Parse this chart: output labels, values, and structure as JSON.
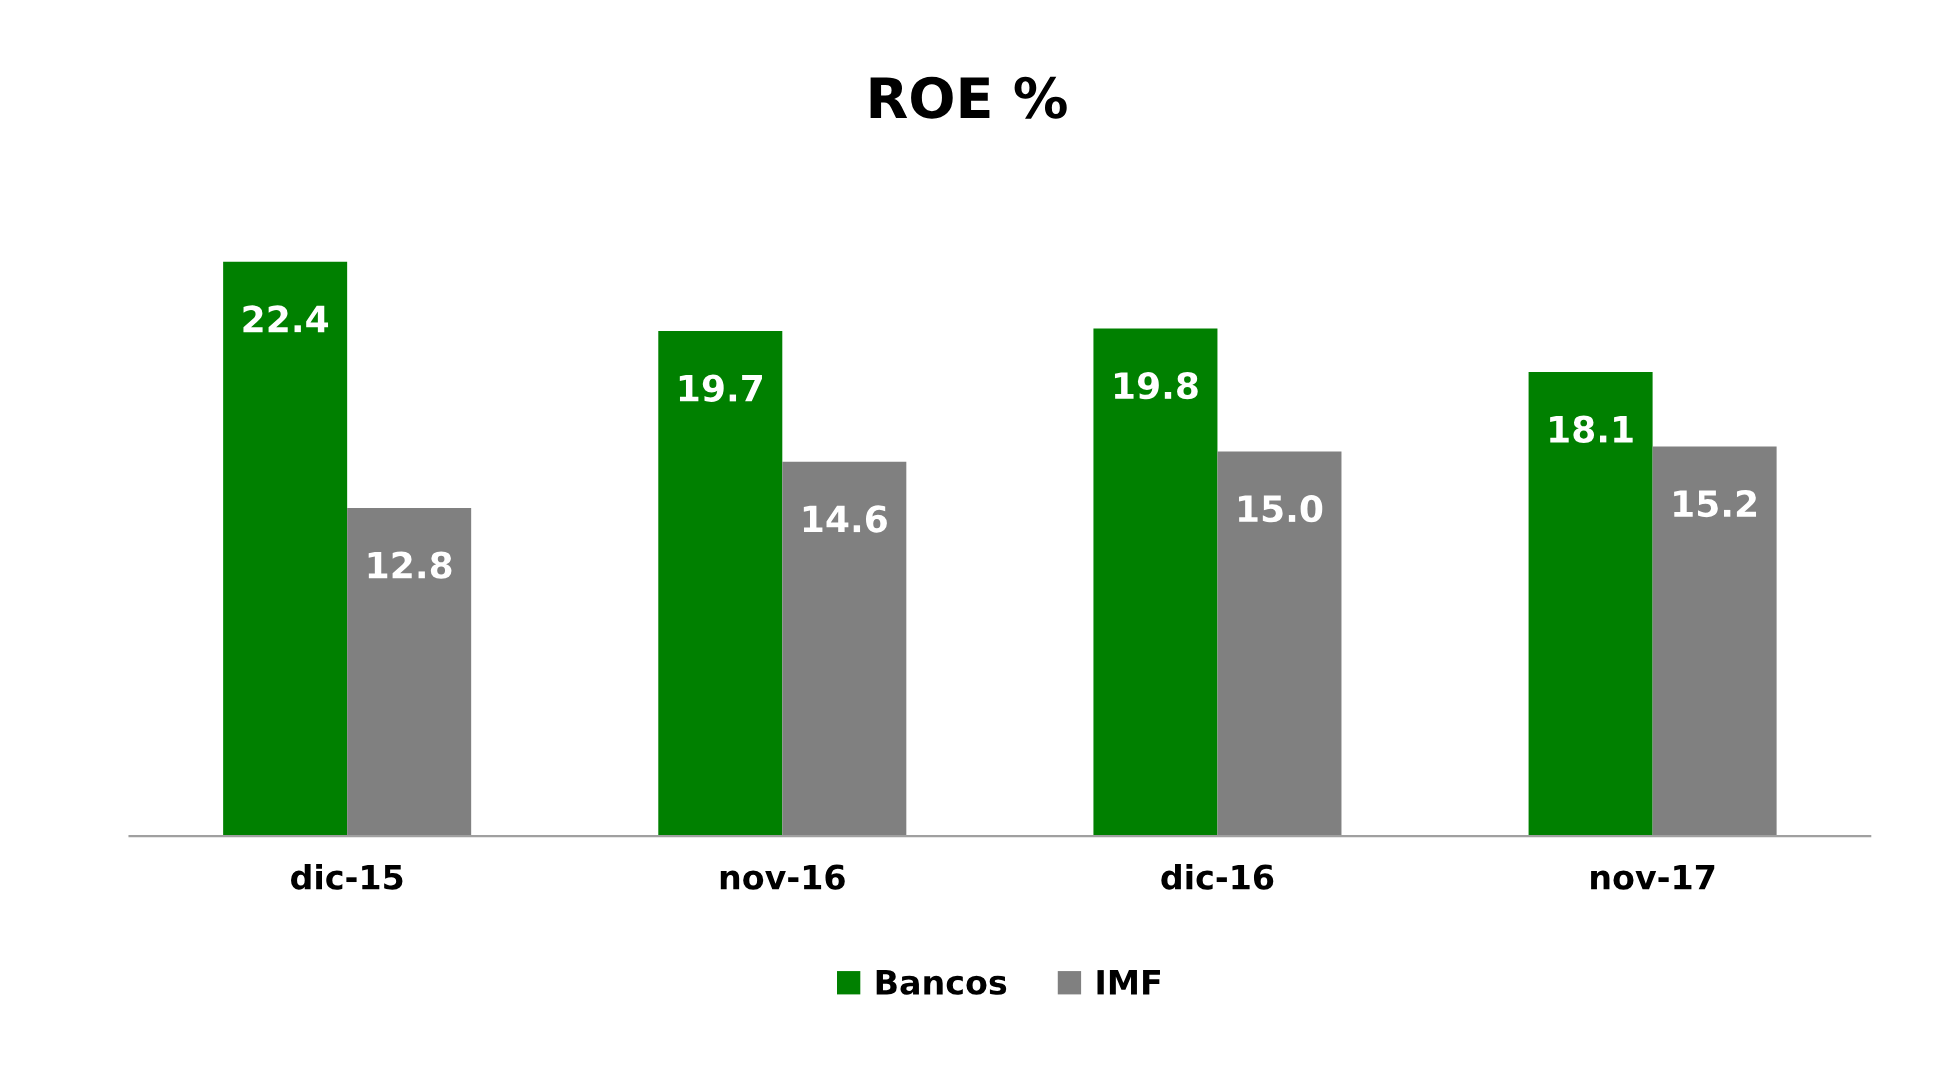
{
  "chart_data": {
    "type": "bar",
    "title": "ROE %",
    "categories": [
      "dic-15",
      "nov-16",
      "dic-16",
      "nov-17"
    ],
    "series": [
      {
        "name": "Bancos",
        "color": "#008000",
        "values": [
          22.4,
          19.7,
          19.8,
          18.1
        ],
        "value_labels": [
          "22.4",
          "19.7",
          "19.8",
          "18.1"
        ]
      },
      {
        "name": "IMF",
        "color": "#808080",
        "values": [
          12.8,
          14.6,
          15.0,
          15.2
        ],
        "value_labels": [
          "12.8",
          "14.6",
          "15.0",
          "15.2"
        ]
      }
    ],
    "legend": "bottom",
    "grid": false
  }
}
